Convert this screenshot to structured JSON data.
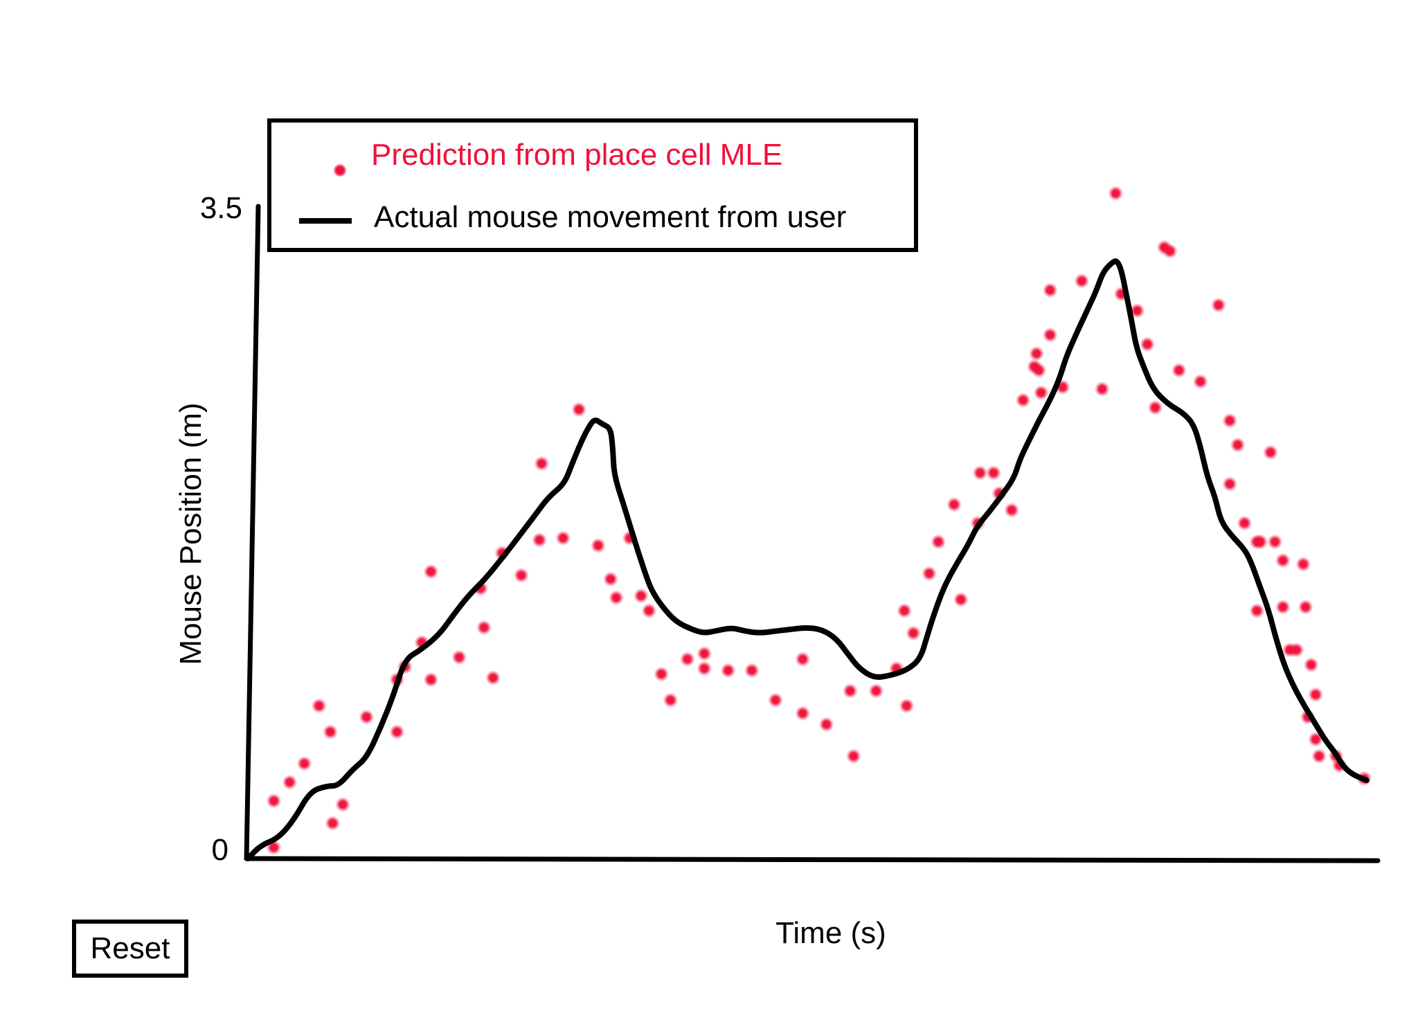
{
  "chart_data": {
    "type": "scatter",
    "title": "",
    "xlabel": "Time (s)",
    "ylabel": "Mouse Position (m)",
    "ylim": [
      0,
      3.5
    ],
    "xlim": [
      0,
      100
    ],
    "y_ticks": [
      "0",
      "3.5"
    ],
    "legend": {
      "placement": "top-left",
      "items": [
        {
          "label": "Prediction from place cell MLE",
          "color": "#f0103a",
          "marker": "dot"
        },
        {
          "label": "Actual mouse movement from user",
          "color": "#000000",
          "marker": "line"
        }
      ]
    },
    "series": [
      {
        "name": "Prediction from place cell MLE",
        "kind": "scatter",
        "color": "#f0103a",
        "points": [
          [
            2.3,
            0.31
          ],
          [
            2.3,
            0.06
          ],
          [
            3.7,
            0.41
          ],
          [
            5.0,
            0.51
          ],
          [
            6.3,
            0.82
          ],
          [
            7.3,
            0.68
          ],
          [
            7.5,
            0.19
          ],
          [
            8.4,
            0.29
          ],
          [
            10.5,
            0.76
          ],
          [
            13.2,
            0.96
          ],
          [
            13.2,
            0.68
          ],
          [
            13.9,
            1.03
          ],
          [
            15.4,
            1.16
          ],
          [
            16.2,
            1.54
          ],
          [
            16.2,
            0.96
          ],
          [
            18.7,
            1.08
          ],
          [
            20.6,
            1.45
          ],
          [
            20.9,
            1.24
          ],
          [
            21.7,
            0.97
          ],
          [
            22.5,
            1.64
          ],
          [
            24.2,
            1.52
          ],
          [
            26.0,
            2.12
          ],
          [
            25.8,
            1.71
          ],
          [
            27.9,
            1.72
          ],
          [
            29.3,
            2.41
          ],
          [
            31.0,
            1.68
          ],
          [
            32.1,
            1.5
          ],
          [
            32.6,
            1.4
          ],
          [
            33.8,
            1.72
          ],
          [
            34.8,
            1.41
          ],
          [
            35.5,
            1.33
          ],
          [
            36.6,
            0.99
          ],
          [
            37.4,
            0.85
          ],
          [
            38.9,
            1.07
          ],
          [
            40.4,
            1.1
          ],
          [
            40.4,
            1.02
          ],
          [
            42.5,
            1.01
          ],
          [
            44.6,
            1.01
          ],
          [
            46.7,
            0.85
          ],
          [
            49.1,
            1.07
          ],
          [
            49.1,
            0.78
          ],
          [
            51.2,
            0.72
          ],
          [
            53.3,
            0.9
          ],
          [
            53.6,
            0.55
          ],
          [
            55.6,
            0.9
          ],
          [
            57.4,
            1.02
          ],
          [
            58.3,
            0.82
          ],
          [
            58.1,
            1.33
          ],
          [
            58.9,
            1.21
          ],
          [
            60.3,
            1.53
          ],
          [
            61.1,
            1.7
          ],
          [
            63.1,
            1.39
          ],
          [
            62.5,
            1.9
          ],
          [
            64.6,
            1.8
          ],
          [
            64.8,
            2.07
          ],
          [
            66.0,
            2.07
          ],
          [
            66.5,
            1.96
          ],
          [
            67.6,
            1.87
          ],
          [
            68.6,
            2.46
          ],
          [
            69.6,
            2.64
          ],
          [
            69.8,
            2.71
          ],
          [
            70.0,
            2.62
          ],
          [
            70.2,
            2.5
          ],
          [
            71.0,
            2.81
          ],
          [
            71.0,
            3.05
          ],
          [
            72.1,
            2.53
          ],
          [
            73.8,
            3.1
          ],
          [
            75.6,
            2.52
          ],
          [
            76.8,
            3.57
          ],
          [
            77.3,
            3.03
          ],
          [
            78.7,
            2.94
          ],
          [
            79.6,
            2.76
          ],
          [
            80.3,
            2.42
          ],
          [
            81.1,
            3.28
          ],
          [
            81.6,
            3.26
          ],
          [
            82.4,
            2.62
          ],
          [
            84.3,
            2.56
          ],
          [
            85.9,
            2.97
          ],
          [
            86.9,
            2.35
          ],
          [
            86.9,
            2.01
          ],
          [
            87.6,
            2.22
          ],
          [
            88.2,
            1.8
          ],
          [
            89.3,
            1.33
          ],
          [
            89.3,
            1.7
          ],
          [
            89.6,
            1.7
          ],
          [
            90.5,
            2.18
          ],
          [
            90.9,
            1.7
          ],
          [
            91.6,
            1.6
          ],
          [
            91.6,
            1.35
          ],
          [
            92.2,
            1.12
          ],
          [
            92.8,
            1.12
          ],
          [
            93.4,
            1.58
          ],
          [
            93.6,
            1.35
          ],
          [
            94.1,
            1.04
          ],
          [
            94.5,
            0.88
          ],
          [
            93.8,
            0.76
          ],
          [
            94.5,
            0.64
          ],
          [
            94.8,
            0.55
          ],
          [
            96.3,
            0.55
          ],
          [
            96.6,
            0.5
          ],
          [
            98.8,
            0.43
          ]
        ]
      },
      {
        "name": "Actual mouse movement from user",
        "kind": "line",
        "color": "#000000",
        "points": [
          [
            0.0,
            0.0
          ],
          [
            1.1,
            0.07
          ],
          [
            2.7,
            0.11
          ],
          [
            4.1,
            0.21
          ],
          [
            5.5,
            0.36
          ],
          [
            7.0,
            0.39
          ],
          [
            8.0,
            0.39
          ],
          [
            9.3,
            0.48
          ],
          [
            10.5,
            0.54
          ],
          [
            11.8,
            0.71
          ],
          [
            12.9,
            0.88
          ],
          [
            13.9,
            1.07
          ],
          [
            15.3,
            1.12
          ],
          [
            16.9,
            1.2
          ],
          [
            18.1,
            1.3
          ],
          [
            19.5,
            1.41
          ],
          [
            21.0,
            1.5
          ],
          [
            22.6,
            1.62
          ],
          [
            24.0,
            1.73
          ],
          [
            25.5,
            1.85
          ],
          [
            26.6,
            1.94
          ],
          [
            28.0,
            2.01
          ],
          [
            28.7,
            2.12
          ],
          [
            29.6,
            2.25
          ],
          [
            30.2,
            2.32
          ],
          [
            30.7,
            2.36
          ],
          [
            31.4,
            2.33
          ],
          [
            32.1,
            2.31
          ],
          [
            32.3,
            2.2
          ],
          [
            32.4,
            2.06
          ],
          [
            33.2,
            1.91
          ],
          [
            34.0,
            1.75
          ],
          [
            35.0,
            1.56
          ],
          [
            35.7,
            1.44
          ],
          [
            36.7,
            1.35
          ],
          [
            37.9,
            1.27
          ],
          [
            39.3,
            1.23
          ],
          [
            40.3,
            1.21
          ],
          [
            41.3,
            1.22
          ],
          [
            42.8,
            1.24
          ],
          [
            44.0,
            1.22
          ],
          [
            45.3,
            1.21
          ],
          [
            46.6,
            1.22
          ],
          [
            48.0,
            1.23
          ],
          [
            49.4,
            1.24
          ],
          [
            50.8,
            1.23
          ],
          [
            52.1,
            1.18
          ],
          [
            53.2,
            1.09
          ],
          [
            54.1,
            1.02
          ],
          [
            55.4,
            0.97
          ],
          [
            56.7,
            0.98
          ],
          [
            58.3,
            1.01
          ],
          [
            59.5,
            1.07
          ],
          [
            60.1,
            1.19
          ],
          [
            60.6,
            1.29
          ],
          [
            61.6,
            1.46
          ],
          [
            62.9,
            1.6
          ],
          [
            63.8,
            1.69
          ],
          [
            64.5,
            1.78
          ],
          [
            65.6,
            1.86
          ],
          [
            66.6,
            1.94
          ],
          [
            67.8,
            2.04
          ],
          [
            68.3,
            2.14
          ],
          [
            69.1,
            2.24
          ],
          [
            70.0,
            2.35
          ],
          [
            70.9,
            2.45
          ],
          [
            71.8,
            2.57
          ],
          [
            72.4,
            2.69
          ],
          [
            73.2,
            2.8
          ],
          [
            73.8,
            2.88
          ],
          [
            74.5,
            2.97
          ],
          [
            75.1,
            3.05
          ],
          [
            75.7,
            3.15
          ],
          [
            76.5,
            3.2
          ],
          [
            76.9,
            3.21
          ],
          [
            77.3,
            3.16
          ],
          [
            77.7,
            3.04
          ],
          [
            78.2,
            2.89
          ],
          [
            78.6,
            2.75
          ],
          [
            79.2,
            2.65
          ],
          [
            80.1,
            2.52
          ],
          [
            81.4,
            2.44
          ],
          [
            82.8,
            2.39
          ],
          [
            83.7,
            2.33
          ],
          [
            84.3,
            2.21
          ],
          [
            84.9,
            2.05
          ],
          [
            85.6,
            1.94
          ],
          [
            86.1,
            1.81
          ],
          [
            87.1,
            1.73
          ],
          [
            88.2,
            1.66
          ],
          [
            88.8,
            1.59
          ],
          [
            89.5,
            1.47
          ],
          [
            90.3,
            1.34
          ],
          [
            90.9,
            1.2
          ],
          [
            91.7,
            1.04
          ],
          [
            92.5,
            0.93
          ],
          [
            93.3,
            0.84
          ],
          [
            94.3,
            0.74
          ],
          [
            95.4,
            0.63
          ],
          [
            96.2,
            0.57
          ],
          [
            97.0,
            0.49
          ],
          [
            97.8,
            0.45
          ],
          [
            99.0,
            0.42
          ]
        ]
      }
    ]
  },
  "controls": {
    "reset_label": "Reset"
  }
}
